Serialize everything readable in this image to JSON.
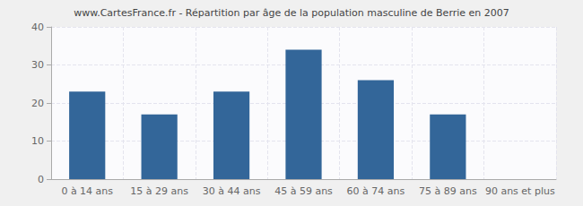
{
  "chart_data": {
    "type": "bar",
    "title": "www.CartesFrance.fr - Répartition par âge de la population masculine de Berrie en 2007",
    "categories": [
      "0 à 14 ans",
      "15 à 29 ans",
      "30 à 44 ans",
      "45 à 59 ans",
      "60 à 74 ans",
      "75 à 89 ans",
      "90 ans et plus"
    ],
    "values": [
      23,
      17,
      23,
      34,
      26,
      17,
      0
    ],
    "color": "#336699",
    "ylim": [
      0,
      40
    ],
    "yticks": [
      0,
      10,
      20,
      30,
      40
    ],
    "grid": true
  }
}
